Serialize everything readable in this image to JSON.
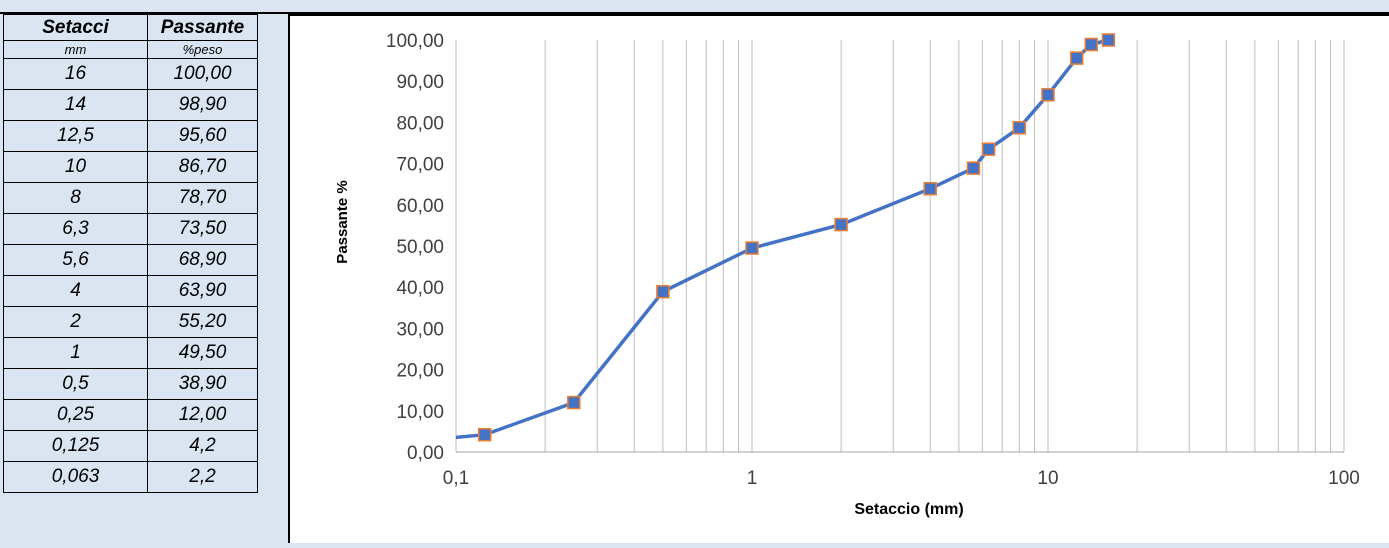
{
  "table": {
    "headers": [
      "Setacci",
      "Passante"
    ],
    "units": [
      "mm",
      "%peso"
    ],
    "rows": [
      [
        "16",
        "100,00"
      ],
      [
        "14",
        "98,90"
      ],
      [
        "12,5",
        "95,60"
      ],
      [
        "10",
        "86,70"
      ],
      [
        "8",
        "78,70"
      ],
      [
        "6,3",
        "73,50"
      ],
      [
        "5,6",
        "68,90"
      ],
      [
        "4",
        "63,90"
      ],
      [
        "2",
        "55,20"
      ],
      [
        "1",
        "49,50"
      ],
      [
        "0,5",
        "38,90"
      ],
      [
        "0,25",
        "12,00"
      ],
      [
        "0,125",
        "4,2"
      ],
      [
        "0,063",
        "2,2"
      ]
    ]
  },
  "chart_data": {
    "type": "line",
    "xlabel": "Setaccio (mm)",
    "ylabel": "Passante %",
    "x_scale": "log",
    "xlim": [
      0.1,
      100
    ],
    "ylim": [
      0,
      100
    ],
    "x_ticks": [
      "0,1",
      "1",
      "10",
      "100"
    ],
    "y_ticks": [
      "0,00",
      "10,00",
      "20,00",
      "30,00",
      "40,00",
      "50,00",
      "60,00",
      "70,00",
      "80,00",
      "90,00",
      "100,00"
    ],
    "grid": true,
    "series": [
      {
        "x": [
          0.063,
          0.125,
          0.25,
          0.5,
          1,
          2,
          4,
          5.6,
          6.3,
          8,
          10,
          12.5,
          14,
          16
        ],
        "y": [
          2.2,
          4.2,
          12.0,
          38.9,
          49.5,
          55.2,
          63.9,
          68.9,
          73.5,
          78.7,
          86.7,
          95.6,
          98.9,
          100.0
        ]
      }
    ],
    "colors": {
      "line": "#4472c4",
      "marker_fill": "#4472c4",
      "marker_edge": "#ed7d31",
      "grid": "#bfbfbf"
    }
  }
}
